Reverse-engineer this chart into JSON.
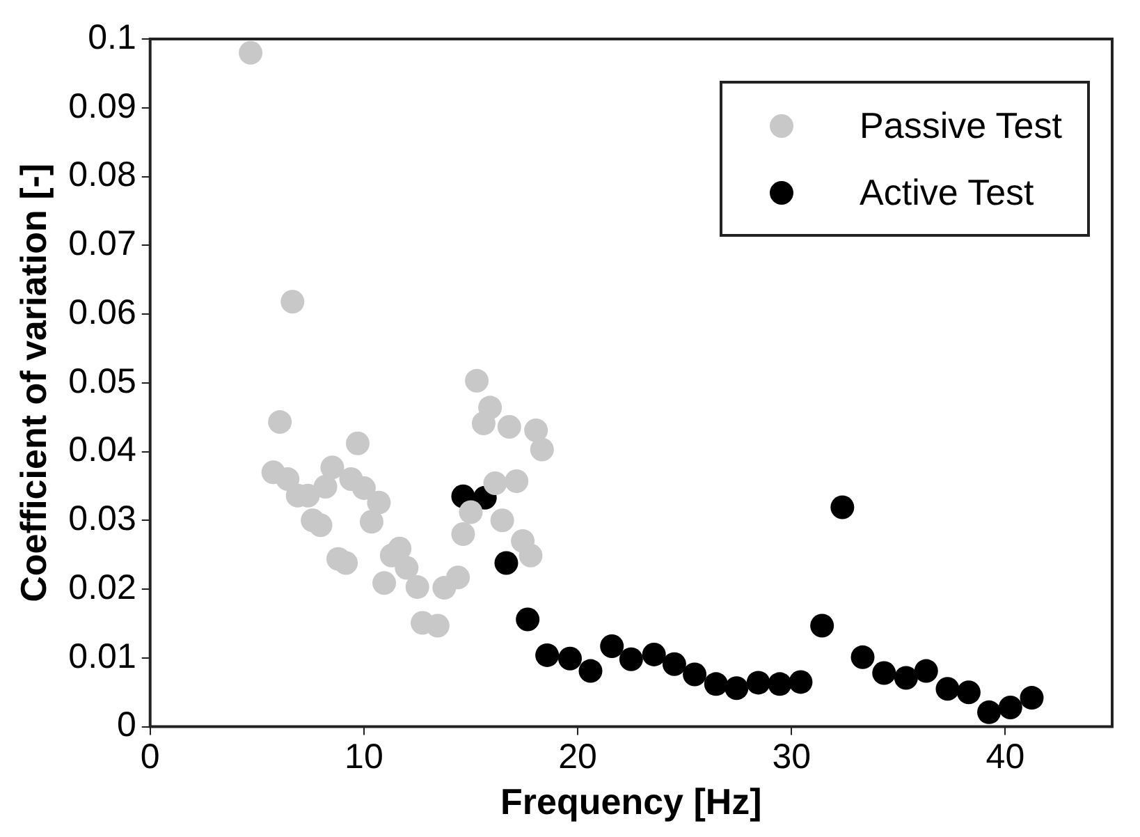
{
  "chart_data": {
    "type": "scatter",
    "xlabel": "Frequency [Hz]",
    "ylabel": "Coefficient of variation [-]",
    "xlim": [
      0,
      45
    ],
    "xticks": [
      0,
      10,
      20,
      30,
      40
    ],
    "ylim": [
      0,
      0.1
    ],
    "yticks": [
      0,
      0.01,
      0.02,
      0.03,
      0.04,
      0.05,
      0.06,
      0.07,
      0.08,
      0.09,
      0.1
    ],
    "legend": "top right",
    "marker": "circle",
    "grid": false,
    "series": [
      {
        "name": "Passive Test",
        "color": "#c8c8c8",
        "x": [
          4.7,
          6.66,
          6.07,
          5.76,
          6.43,
          6.9,
          7.38,
          7.6,
          7.97,
          8.2,
          8.52,
          8.8,
          9.16,
          9.4,
          9.71,
          10.0,
          10.36,
          10.7,
          10.95,
          11.3,
          11.67,
          12.0,
          12.5,
          12.74,
          13.45,
          13.76,
          14.4,
          14.64,
          15.0,
          15.28,
          15.9,
          15.6,
          16.14,
          16.47,
          16.8,
          17.14,
          17.43,
          17.8,
          18.05,
          18.33
        ],
        "values": [
          0.098,
          0.0618,
          0.0443,
          0.037,
          0.036,
          0.0336,
          0.0336,
          0.03,
          0.0293,
          0.0349,
          0.0377,
          0.0244,
          0.0238,
          0.036,
          0.0412,
          0.0347,
          0.0298,
          0.0326,
          0.0209,
          0.0249,
          0.0259,
          0.0231,
          0.0203,
          0.0151,
          0.0147,
          0.0202,
          0.0217,
          0.028,
          0.0312,
          0.0503,
          0.0464,
          0.0441,
          0.0354,
          0.03,
          0.0436,
          0.0357,
          0.027,
          0.0249,
          0.0431,
          0.0403
        ]
      },
      {
        "name": "Active Test",
        "color": "#000000",
        "x": [
          14.64,
          15.66,
          16.66,
          17.66,
          18.57,
          19.64,
          20.6,
          21.6,
          22.5,
          23.57,
          24.52,
          25.47,
          26.47,
          27.43,
          28.45,
          29.45,
          30.43,
          31.43,
          32.38,
          33.33,
          34.33,
          35.36,
          36.3,
          37.3,
          38.29,
          39.24,
          40.24,
          41.24
        ],
        "values": [
          0.0335,
          0.0333,
          0.0238,
          0.0156,
          0.0104,
          0.0099,
          0.0081,
          0.0117,
          0.0098,
          0.0105,
          0.0091,
          0.0076,
          0.0062,
          0.0056,
          0.0064,
          0.0062,
          0.0065,
          0.0147,
          0.0319,
          0.0101,
          0.0078,
          0.0071,
          0.0081,
          0.0055,
          0.005,
          0.0021,
          0.0028,
          0.0042
        ]
      }
    ]
  }
}
